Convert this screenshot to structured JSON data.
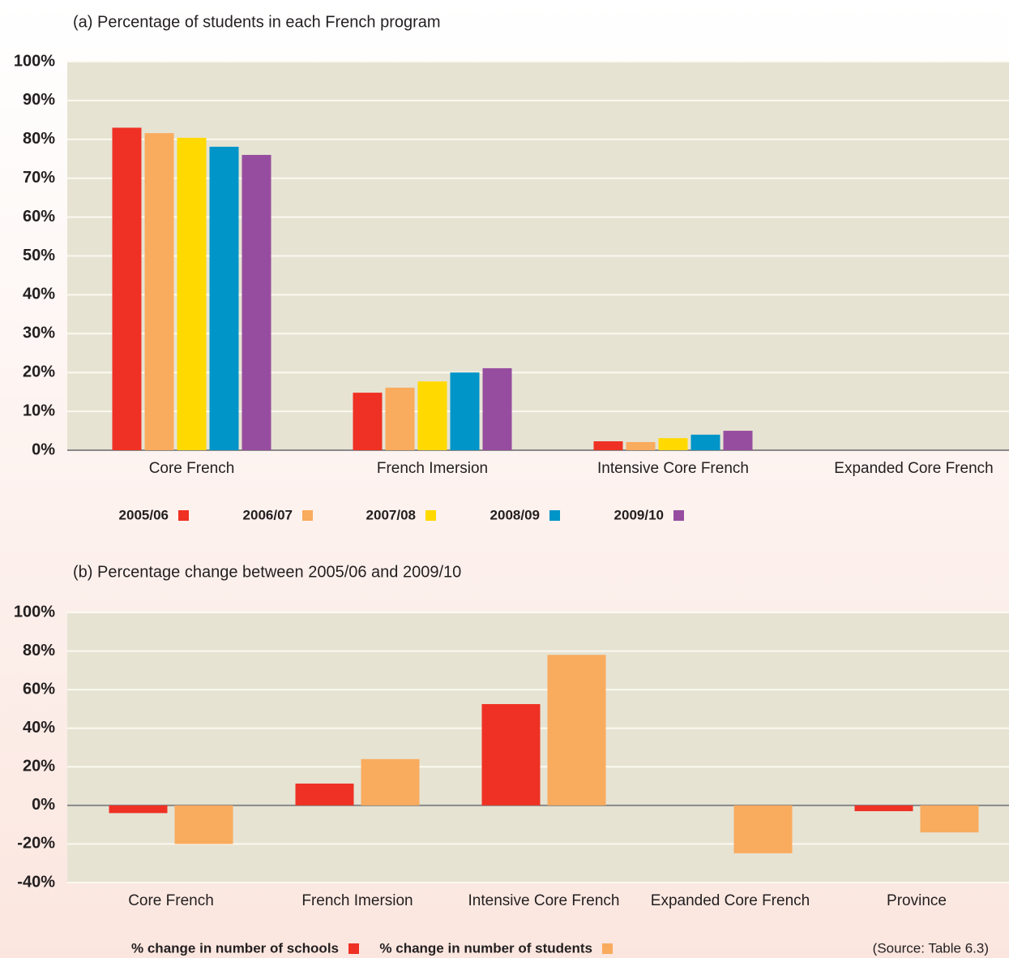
{
  "chart_data": [
    {
      "type": "bar",
      "title": "(a) Percentage of students in each French program",
      "categories": [
        "Core French",
        "French Imersion",
        "Intensive Core French",
        "Expanded Core French"
      ],
      "series": [
        {
          "name": "2005/06",
          "color": "#ee3124",
          "values": [
            83,
            14.8,
            2.3,
            0
          ]
        },
        {
          "name": "2006/07",
          "color": "#f9ab5e",
          "values": [
            81.6,
            16.1,
            2.1,
            0
          ]
        },
        {
          "name": "2007/08",
          "color": "#ffd900",
          "values": [
            80.4,
            17.7,
            3.1,
            0
          ]
        },
        {
          "name": "2008/09",
          "color": "#0095c8",
          "values": [
            78.1,
            20,
            4,
            0
          ]
        },
        {
          "name": "2009/10",
          "color": "#974d9f",
          "values": [
            76,
            21.1,
            5,
            0
          ]
        }
      ],
      "ylim": [
        0,
        100
      ],
      "yticks": [
        {
          "value": 0,
          "label": "0%"
        },
        {
          "value": 10,
          "label": "10%"
        },
        {
          "value": 20,
          "label": "20%"
        },
        {
          "value": 30,
          "label": "30%"
        },
        {
          "value": 40,
          "label": "40%"
        },
        {
          "value": 50,
          "label": "50%"
        },
        {
          "value": 60,
          "label": "60%"
        },
        {
          "value": 70,
          "label": "70%"
        },
        {
          "value": 80,
          "label": "80%"
        },
        {
          "value": 90,
          "label": "90%"
        },
        {
          "value": 100,
          "label": "100%"
        }
      ],
      "grid": true
    },
    {
      "type": "bar",
      "title": "(b) Percentage change between 2005/06 and 2009/10",
      "categories": [
        "Core French",
        "French Imersion",
        "Intensive Core French",
        "Expanded Core French",
        "Province"
      ],
      "series": [
        {
          "name": "% change in number of schools",
          "color": "#ee3124",
          "values": [
            -4,
            11.3,
            52.5,
            null,
            -3
          ]
        },
        {
          "name": "% change in number of students",
          "color": "#f9ab5e",
          "values": [
            -20,
            24,
            78,
            -24.8,
            -14
          ]
        }
      ],
      "ylim": [
        -40,
        100
      ],
      "yticks": [
        {
          "value": -40,
          "label": "-40%"
        },
        {
          "value": -20,
          "label": "-20%"
        },
        {
          "value": 0,
          "label": "0%"
        },
        {
          "value": 20,
          "label": "20%"
        },
        {
          "value": 40,
          "label": "40%"
        },
        {
          "value": 60,
          "label": "60%"
        },
        {
          "value": 80,
          "label": "80%"
        },
        {
          "value": 100,
          "label": "100%"
        }
      ],
      "grid": true
    }
  ],
  "source": "(Source: Table 6.3)"
}
